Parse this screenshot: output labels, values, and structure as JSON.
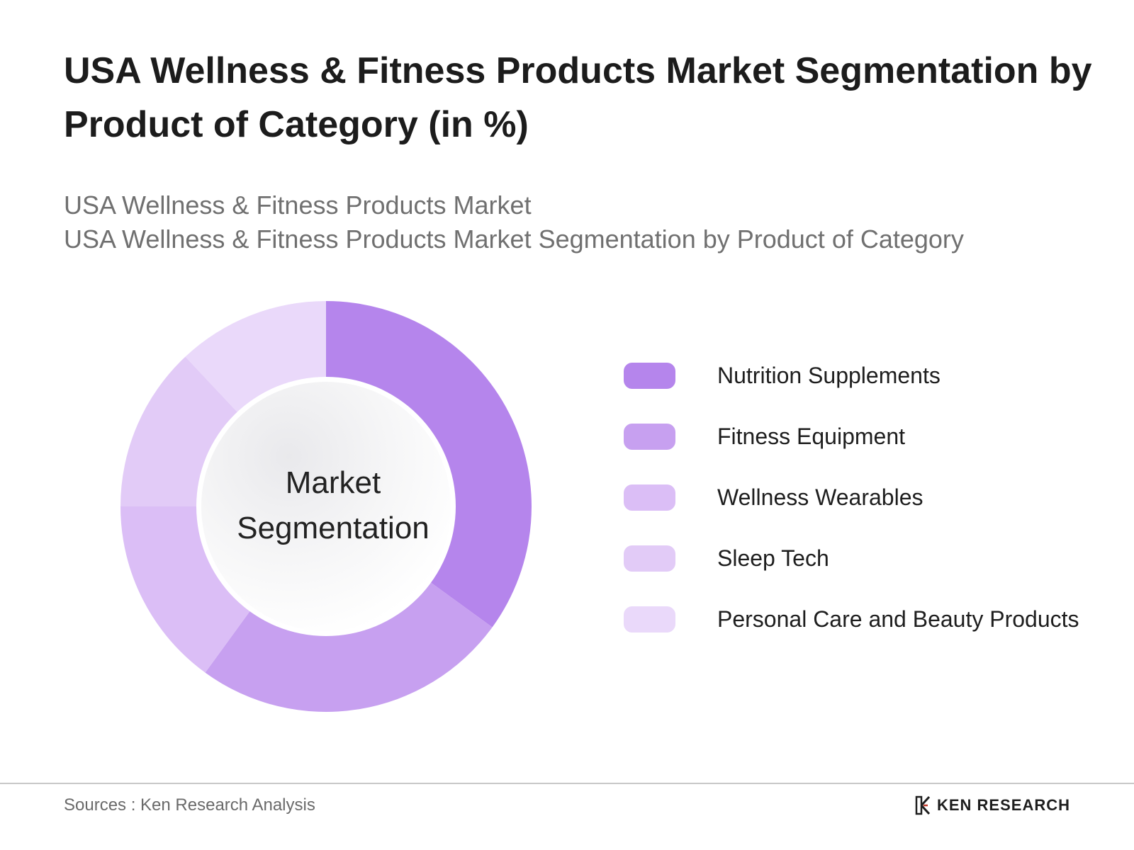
{
  "chart_data": {
    "type": "pie",
    "title": "USA Wellness & Fitness Products Market Segmentation by Product of Category (in %)",
    "subtitle_lines": [
      "USA Wellness & Fitness Products Market",
      "USA Wellness & Fitness Products Market Segmentation by Product of Category"
    ],
    "center_label": [
      "Market",
      "Segmentation"
    ],
    "categories": [
      "Nutrition Supplements",
      "Fitness Equipment",
      "Wellness Wearables",
      "Sleep Tech",
      "Personal Care and Beauty Products"
    ],
    "values": [
      35,
      25,
      15,
      13,
      12
    ],
    "colors": [
      "#b585ec",
      "#c7a0f0",
      "#dbbef6",
      "#e2cbf7",
      "#ead9fa"
    ],
    "legend_position": "right"
  },
  "footer": {
    "source": "Sources : Ken Research Analysis",
    "brand": "KEN RESEARCH",
    "brand_icon": "ken-research-logo-icon"
  }
}
